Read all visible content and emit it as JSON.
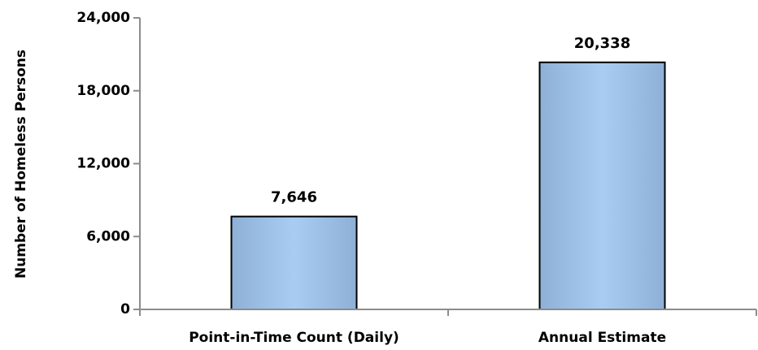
{
  "chart_data": {
    "type": "bar",
    "categories": [
      "Point-in-Time Count (Daily)",
      "Annual Estimate"
    ],
    "values": [
      7646,
      20338
    ],
    "data_labels": [
      "7,646",
      "20,338"
    ],
    "ylabel": "Number of Homeless Persons",
    "ylim": [
      0,
      24000
    ],
    "yticks": [
      0,
      6000,
      12000,
      18000,
      24000
    ],
    "ytick_labels": [
      "0",
      "6,000",
      "12,000",
      "18,000",
      "24,000"
    ],
    "grid": false,
    "bar_fill_edge": "#8eb0d6",
    "bar_fill_center": "#a9cdf2",
    "axis_color": "#8c8c8c"
  }
}
